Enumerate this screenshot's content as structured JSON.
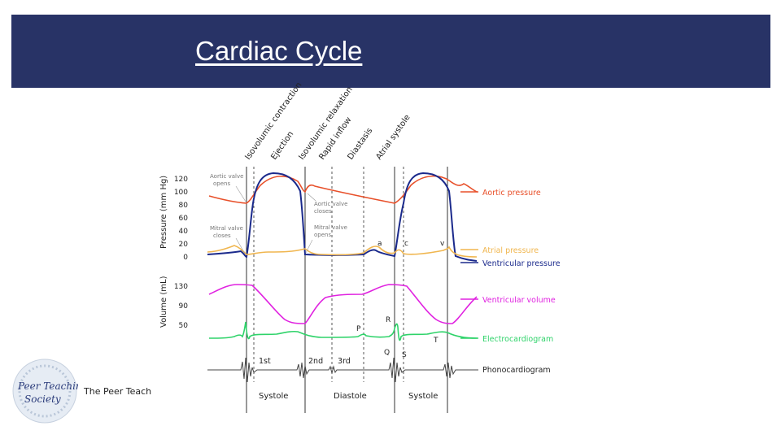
{
  "slide": {
    "title": "Cardiac Cycle",
    "logo_caption": "The Peer Teach",
    "logo_script_text": [
      "Peer Teaching",
      "Society"
    ]
  },
  "diagram": {
    "phases": [
      "Isovolumic contraction",
      "Ejection",
      "Isovolumic relaxation",
      "Rapid inflow",
      "Diastasis",
      "Atrial systole"
    ],
    "pressure_axis": {
      "label": "Pressure (mm Hg)",
      "ticks": [
        "120",
        "100",
        "80",
        "60",
        "40",
        "20",
        "0"
      ]
    },
    "volume_axis": {
      "label": "Volume (mL)",
      "ticks": [
        "130",
        "90",
        "50"
      ]
    },
    "valve_events": {
      "aortic_opens": [
        "Aortic valve",
        "opens"
      ],
      "aortic_closes": [
        "Aortic valve",
        "closes"
      ],
      "mitral_closes": [
        "Mitral valve",
        "closes"
      ],
      "mitral_opens": [
        "Mitral valve",
        "opens"
      ]
    },
    "atrial_waves": [
      "a",
      "c",
      "v"
    ],
    "ecg_waves": [
      "P",
      "Q",
      "R",
      "S",
      "T"
    ],
    "heart_sounds": [
      "1st",
      "2nd",
      "3rd"
    ],
    "periods": [
      "Systole",
      "Diastole",
      "Systole"
    ],
    "legend": [
      {
        "key": "aortic",
        "label": "Aortic pressure",
        "color": "#e8502a"
      },
      {
        "key": "atrial",
        "label": "Atrial pressure",
        "color": "#f0b64f"
      },
      {
        "key": "ventricular",
        "label": "Ventricular pressure",
        "color": "#1b2a8c"
      },
      {
        "key": "volume",
        "label": "Ventricular volume",
        "color": "#e022e0"
      },
      {
        "key": "ecg",
        "label": "Electrocardiogram",
        "color": "#2fd36a"
      },
      {
        "key": "pcg",
        "label": "Phonocardiogram",
        "color": "#222222"
      }
    ]
  }
}
